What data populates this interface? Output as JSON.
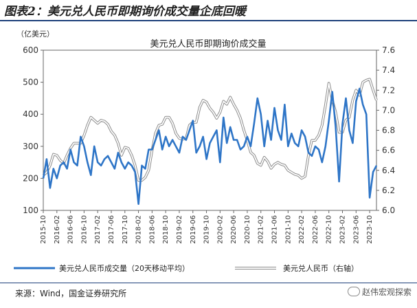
{
  "figure_title": "图表2：美元兑人民币即期询价成交量企底回暖",
  "source": "来源：Wind，国金证券研究所",
  "watermark": "赵伟宏观探索",
  "chart_data": {
    "type": "line",
    "title": "美元兑人民币即期询价成交量",
    "y_left_unit": "（亿美元）",
    "y_left_range": [
      100,
      600
    ],
    "y_left_ticks": [
      "100",
      "200",
      "300",
      "400",
      "500",
      "600"
    ],
    "y_right_range": [
      6.0,
      7.6
    ],
    "y_right_ticks": [
      "6.0",
      "6.2",
      "6.4",
      "6.6",
      "6.8",
      "7.0",
      "7.2",
      "7.4",
      "7.6"
    ],
    "x_tick_labels": [
      "2015-10",
      "2016-02",
      "2016-06",
      "2016-10",
      "2017-02",
      "2017-06",
      "2017-10",
      "2018-02",
      "2018-06",
      "2018-10",
      "2019-02",
      "2019-06",
      "2019-10",
      "2020-02",
      "2020-06",
      "2020-10",
      "2021-02",
      "2021-06",
      "2021-10",
      "2022-02",
      "2022-06",
      "2022-10",
      "2023-02",
      "2023-06",
      "2023-10"
    ],
    "x_range": [
      "2015-10",
      "2023-12"
    ],
    "colors": {
      "volume": "#2e75c7",
      "fx": "#b8b8b8"
    },
    "series": [
      {
        "name": "美元兑人民币成交量（20天移动平均）",
        "axis": "left",
        "x": [
          "2015-10",
          "2015-11",
          "2015-12",
          "2016-01",
          "2016-02",
          "2016-03",
          "2016-04",
          "2016-05",
          "2016-06",
          "2016-07",
          "2016-08",
          "2016-09",
          "2016-10",
          "2016-11",
          "2016-12",
          "2017-01",
          "2017-02",
          "2017-03",
          "2017-04",
          "2017-05",
          "2017-06",
          "2017-07",
          "2017-08",
          "2017-09",
          "2017-10",
          "2017-11",
          "2017-12",
          "2018-01",
          "2018-02",
          "2018-03",
          "2018-04",
          "2018-05",
          "2018-06",
          "2018-07",
          "2018-08",
          "2018-09",
          "2018-10",
          "2018-11",
          "2018-12",
          "2019-01",
          "2019-02",
          "2019-03",
          "2019-04",
          "2019-05",
          "2019-06",
          "2019-07",
          "2019-08",
          "2019-09",
          "2019-10",
          "2019-11",
          "2019-12",
          "2020-01",
          "2020-02",
          "2020-03",
          "2020-04",
          "2020-05",
          "2020-06",
          "2020-07",
          "2020-08",
          "2020-09",
          "2020-10",
          "2020-11",
          "2020-12",
          "2021-01",
          "2021-02",
          "2021-03",
          "2021-04",
          "2021-05",
          "2021-06",
          "2021-07",
          "2021-08",
          "2021-09",
          "2021-10",
          "2021-11",
          "2021-12",
          "2022-01",
          "2022-02",
          "2022-03",
          "2022-04",
          "2022-05",
          "2022-06",
          "2022-07",
          "2022-08",
          "2022-09",
          "2022-10",
          "2022-11",
          "2022-12",
          "2023-01",
          "2023-02",
          "2023-03",
          "2023-04",
          "2023-05",
          "2023-06",
          "2023-07",
          "2023-08",
          "2023-09",
          "2023-10",
          "2023-11",
          "2023-12"
        ],
        "values": [
          200,
          260,
          170,
          230,
          200,
          240,
          250,
          230,
          290,
          250,
          240,
          330,
          300,
          250,
          210,
          300,
          250,
          240,
          260,
          270,
          250,
          230,
          280,
          250,
          230,
          250,
          240,
          220,
          120,
          240,
          230,
          290,
          290,
          320,
          350,
          290,
          330,
          300,
          320,
          300,
          280,
          330,
          320,
          350,
          380,
          280,
          300,
          330,
          260,
          310,
          330,
          350,
          250,
          390,
          310,
          360,
          320,
          320,
          290,
          300,
          330,
          300,
          370,
          450,
          400,
          300,
          380,
          320,
          420,
          350,
          320,
          430,
          300,
          340,
          310,
          300,
          350,
          330,
          280,
          270,
          300,
          290,
          250,
          300,
          380,
          470,
          360,
          190,
          370,
          450,
          350,
          310,
          440,
          480,
          430,
          400,
          140,
          220,
          240
        ]
      },
      {
        "name": "美元兑人民币（右轴）",
        "axis": "right",
        "x": [
          "2015-10",
          "2015-11",
          "2015-12",
          "2016-01",
          "2016-02",
          "2016-03",
          "2016-04",
          "2016-05",
          "2016-06",
          "2016-07",
          "2016-08",
          "2016-09",
          "2016-10",
          "2016-11",
          "2016-12",
          "2017-01",
          "2017-02",
          "2017-03",
          "2017-04",
          "2017-05",
          "2017-06",
          "2017-07",
          "2017-08",
          "2017-09",
          "2017-10",
          "2017-11",
          "2017-12",
          "2018-01",
          "2018-02",
          "2018-03",
          "2018-04",
          "2018-05",
          "2018-06",
          "2018-07",
          "2018-08",
          "2018-09",
          "2018-10",
          "2018-11",
          "2018-12",
          "2019-01",
          "2019-02",
          "2019-03",
          "2019-04",
          "2019-05",
          "2019-06",
          "2019-07",
          "2019-08",
          "2019-09",
          "2019-10",
          "2019-11",
          "2019-12",
          "2020-01",
          "2020-02",
          "2020-03",
          "2020-04",
          "2020-05",
          "2020-06",
          "2020-07",
          "2020-08",
          "2020-09",
          "2020-10",
          "2020-11",
          "2020-12",
          "2021-01",
          "2021-02",
          "2021-03",
          "2021-04",
          "2021-05",
          "2021-06",
          "2021-07",
          "2021-08",
          "2021-09",
          "2021-10",
          "2021-11",
          "2021-12",
          "2022-01",
          "2022-02",
          "2022-03",
          "2022-04",
          "2022-05",
          "2022-06",
          "2022-07",
          "2022-08",
          "2022-09",
          "2022-10",
          "2022-11",
          "2022-12",
          "2023-01",
          "2023-02",
          "2023-03",
          "2023-04",
          "2023-05",
          "2023-06",
          "2023-07",
          "2023-08",
          "2023-09",
          "2023-10",
          "2023-11",
          "2023-12"
        ],
        "values": [
          6.35,
          6.38,
          6.45,
          6.56,
          6.55,
          6.5,
          6.47,
          6.55,
          6.62,
          6.67,
          6.67,
          6.67,
          6.75,
          6.85,
          6.93,
          6.9,
          6.87,
          6.9,
          6.89,
          6.86,
          6.79,
          6.75,
          6.67,
          6.55,
          6.63,
          6.62,
          6.55,
          6.45,
          6.3,
          6.3,
          6.33,
          6.4,
          6.6,
          6.77,
          6.85,
          6.86,
          6.93,
          6.93,
          6.87,
          6.77,
          6.72,
          6.71,
          6.72,
          6.85,
          6.88,
          6.88,
          7.03,
          7.1,
          7.08,
          7.02,
          6.98,
          6.92,
          6.98,
          7.09,
          7.06,
          7.13,
          7.06,
          7.0,
          6.92,
          6.8,
          6.7,
          6.58,
          6.55,
          6.47,
          6.45,
          6.53,
          6.49,
          6.42,
          6.46,
          6.48,
          6.46,
          6.45,
          6.4,
          6.38,
          6.36,
          6.35,
          6.32,
          6.34,
          6.55,
          6.7,
          6.7,
          6.75,
          6.85,
          7.05,
          7.27,
          7.1,
          6.98,
          6.78,
          6.78,
          6.9,
          6.93,
          7.1,
          7.2,
          7.15,
          7.28,
          7.3,
          7.31,
          7.2,
          7.1
        ]
      }
    ],
    "legend_position": "bottom",
    "grid": false
  }
}
